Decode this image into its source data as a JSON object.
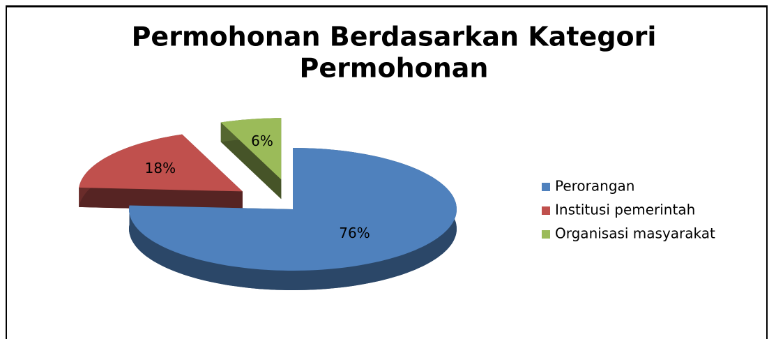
{
  "chart_data": {
    "type": "pie",
    "title": "Permohonan Berdasarkan Kategori Permohonan",
    "title_lines": [
      "Permohonan Berdasarkan Kategori",
      "Permohonan"
    ],
    "categories": [
      "Perorangan",
      "Institusi pemerintah",
      "Organisasi masyarakat"
    ],
    "values": [
      76,
      18,
      6
    ],
    "value_labels": [
      "76%",
      "18%",
      "6%"
    ],
    "colors": [
      "#4f81bd",
      "#c0504d",
      "#9bbb59"
    ],
    "legend": "right"
  }
}
